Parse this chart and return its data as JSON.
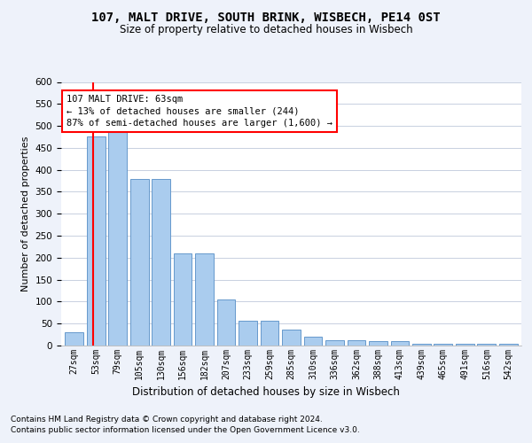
{
  "title": "107, MALT DRIVE, SOUTH BRINK, WISBECH, PE14 0ST",
  "subtitle": "Size of property relative to detached houses in Wisbech",
  "xlabel": "Distribution of detached houses by size in Wisbech",
  "ylabel": "Number of detached properties",
  "categories": [
    "27sqm",
    "53sqm",
    "79sqm",
    "105sqm",
    "130sqm",
    "156sqm",
    "182sqm",
    "207sqm",
    "233sqm",
    "259sqm",
    "285sqm",
    "310sqm",
    "336sqm",
    "362sqm",
    "388sqm",
    "413sqm",
    "439sqm",
    "465sqm",
    "491sqm",
    "516sqm",
    "542sqm"
  ],
  "values": [
    30,
    475,
    495,
    380,
    380,
    210,
    210,
    105,
    57,
    57,
    37,
    20,
    13,
    13,
    10,
    10,
    5,
    5,
    5,
    5,
    5
  ],
  "bar_color": "#aaccee",
  "bar_edge_color": "#6699cc",
  "ylim": [
    0,
    600
  ],
  "yticks": [
    0,
    50,
    100,
    150,
    200,
    250,
    300,
    350,
    400,
    450,
    500,
    550,
    600
  ],
  "property_sqm": 63,
  "bin_edges": [
    27,
    53,
    79,
    105,
    130,
    156,
    182,
    207,
    233,
    259,
    285,
    310,
    336,
    362,
    388,
    413,
    439,
    465,
    491,
    516,
    542,
    568
  ],
  "annotation_line1": "107 MALT DRIVE: 63sqm",
  "annotation_line2": "← 13% of detached houses are smaller (244)",
  "annotation_line3": "87% of semi-detached houses are larger (1,600) →",
  "footer_line1": "Contains HM Land Registry data © Crown copyright and database right 2024.",
  "footer_line2": "Contains public sector information licensed under the Open Government Licence v3.0.",
  "background_color": "#eef2fa",
  "plot_bg_color": "#ffffff",
  "grid_color": "#c8d0e0",
  "title_fontsize": 10,
  "subtitle_fontsize": 8.5,
  "ylabel_fontsize": 8,
  "xlabel_fontsize": 8.5,
  "tick_fontsize": 7,
  "annot_fontsize": 7.5,
  "footer_fontsize": 6.5
}
